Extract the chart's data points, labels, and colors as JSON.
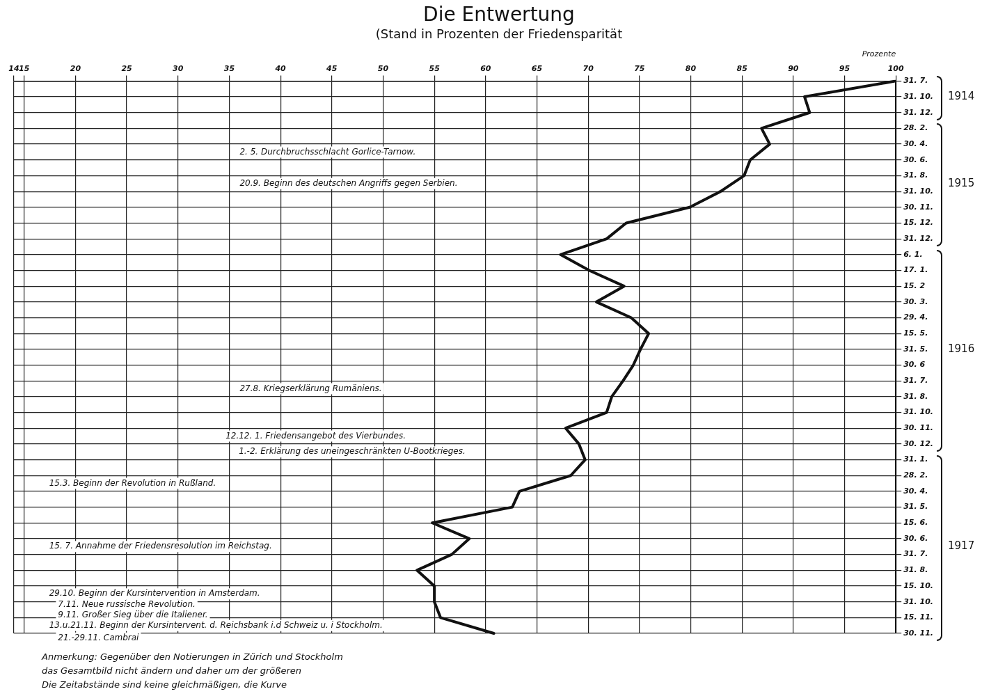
{
  "chart_data": {
    "type": "line",
    "title": "Die Entwertung",
    "subtitle": "(Stand in Prozenten der Friedensparität",
    "xlabel": "Prozente",
    "orientation": "horizontal",
    "categories": [
      "31. 7.",
      "31. 10.",
      "31. 12.",
      "28. 2.",
      "30. 4.",
      "30. 6.",
      "31. 8.",
      "31. 10.",
      "30. 11.",
      "15. 12.",
      "31. 12.",
      "6. 1.",
      "17. 1.",
      "15. 2",
      "30. 3.",
      "29. 4.",
      "15. 5.",
      "31. 5.",
      "30. 6",
      "31. 7.",
      "31. 8.",
      "31. 10.",
      "30. 11.",
      "30. 12.",
      "31. 1.",
      "28. 2.",
      "30. 4.",
      "31. 5.",
      "15. 6.",
      "30. 6.",
      "31. 7.",
      "31. 8.",
      "15. 10.",
      "31. 10.",
      "15. 11.",
      "30. 11."
    ],
    "series": [
      {
        "color": "#111111",
        "values": [
          100,
          91.1,
          91.6,
          86.9,
          87.7,
          85.8,
          85.2,
          82.9,
          79.9,
          73.7,
          71.8,
          67.3,
          70.1,
          73.5,
          70.8,
          74.2,
          75.9,
          75.1,
          74.4,
          73.4,
          72.3,
          71.8,
          67.8,
          69.1,
          69.7,
          68.3,
          63.3,
          62.6,
          54.8,
          58.4,
          56.7,
          53.3,
          55.0,
          55.0,
          55.6,
          60.8
        ]
      }
    ],
    "xlim": [
      14,
      100
    ],
    "xticks": [
      14,
      15,
      20,
      25,
      30,
      35,
      40,
      45,
      50,
      55,
      60,
      65,
      70,
      75,
      80,
      85,
      90,
      95,
      100
    ],
    "grid": true,
    "legend": false,
    "marker": "none",
    "line_style": "solid",
    "annotations": [
      "1914",
      "1915",
      "1916",
      "1917",
      "2. 5. Durchbruchsschlacht Gorlice-Tarnow.",
      "20.9. Beginn des deutschen Angriffs gegen Serbien.",
      "27.8. Kriegserklärung Rumäniens.",
      "12.12. 1. Friedensangebot des Vierbundes.",
      "1.-2. Erklärung des uneingeschränkten U-Bootkrieges.",
      "15.3. Beginn der Revolution in Rußland.",
      "15. 7. Annahme der Friedensresolution im Reichstag.",
      "29.10. Beginn der Kursintervention in Amsterdam.",
      "7.11. Neue russische Revolution.",
      "9.11. Großer Sieg über die Italiener.",
      "13.u.21.11. Beginn der Kursintervent. d. Reichsbank i.d Schweiz u. i Stockholm.",
      "21.-29.11. Cambrai",
      "Anmerkung: Gegenüber den Notierungen in Zürich und Stockholm",
      "das Gesamtbild nicht ändern und daher um der größeren",
      "Die Zeitabstände sind keine gleichmäßigen, die Kurve"
    ]
  }
}
